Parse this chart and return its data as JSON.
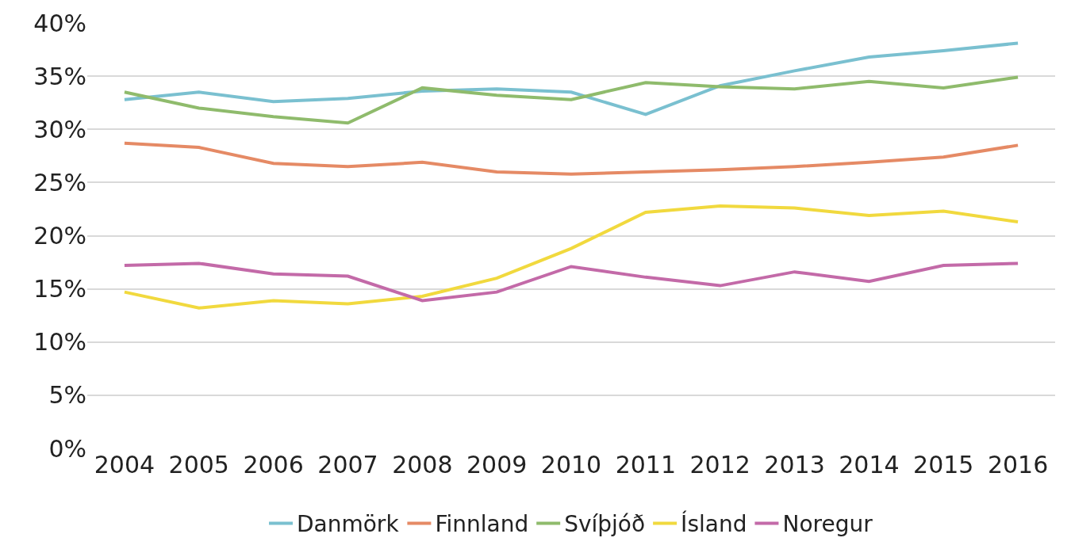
{
  "chart_data": {
    "type": "line",
    "categories": [
      "2004",
      "2005",
      "2006",
      "2007",
      "2008",
      "2009",
      "2010",
      "2011",
      "2012",
      "2013",
      "2014",
      "2015",
      "2016"
    ],
    "series": [
      {
        "name": "Danmörk",
        "color": "#7ac0d0",
        "values": [
          32.8,
          33.5,
          32.6,
          32.9,
          33.6,
          33.8,
          33.5,
          31.4,
          34.1,
          35.5,
          36.8,
          37.4,
          38.1
        ]
      },
      {
        "name": "Finnland",
        "color": "#e58a65",
        "values": [
          28.7,
          28.3,
          26.8,
          26.5,
          26.9,
          26.0,
          25.8,
          26.0,
          26.2,
          26.5,
          26.9,
          27.4,
          28.5
        ]
      },
      {
        "name": "Svíþjóð",
        "color": "#8fbb6c",
        "values": [
          33.5,
          32.0,
          31.2,
          30.6,
          33.9,
          33.2,
          32.8,
          34.4,
          34.0,
          33.8,
          34.5,
          33.9,
          34.9
        ]
      },
      {
        "name": "Ísland",
        "color": "#f1d93e",
        "values": [
          14.7,
          13.2,
          13.9,
          13.6,
          14.3,
          16.0,
          18.8,
          22.2,
          22.8,
          22.6,
          21.9,
          22.3,
          21.3
        ]
      },
      {
        "name": "Noregur",
        "color": "#c36aa8",
        "values": [
          17.2,
          17.4,
          16.4,
          16.2,
          13.9,
          14.7,
          17.1,
          16.1,
          15.3,
          16.6,
          15.7,
          17.2,
          17.4
        ]
      }
    ],
    "ylim": [
      0,
      40
    ],
    "yticks": [
      {
        "value": 0,
        "label": "0%"
      },
      {
        "value": 5,
        "label": "5%"
      },
      {
        "value": 10,
        "label": "10%"
      },
      {
        "value": 15,
        "label": "15%"
      },
      {
        "value": 20,
        "label": "20%"
      },
      {
        "value": 25,
        "label": "25%"
      },
      {
        "value": 30,
        "label": "30%"
      },
      {
        "value": 35,
        "label": "35%"
      },
      {
        "value": 40,
        "label": "40%"
      }
    ],
    "grid": "y",
    "legend": "bottom",
    "marker": "none",
    "line_style": "solid"
  }
}
